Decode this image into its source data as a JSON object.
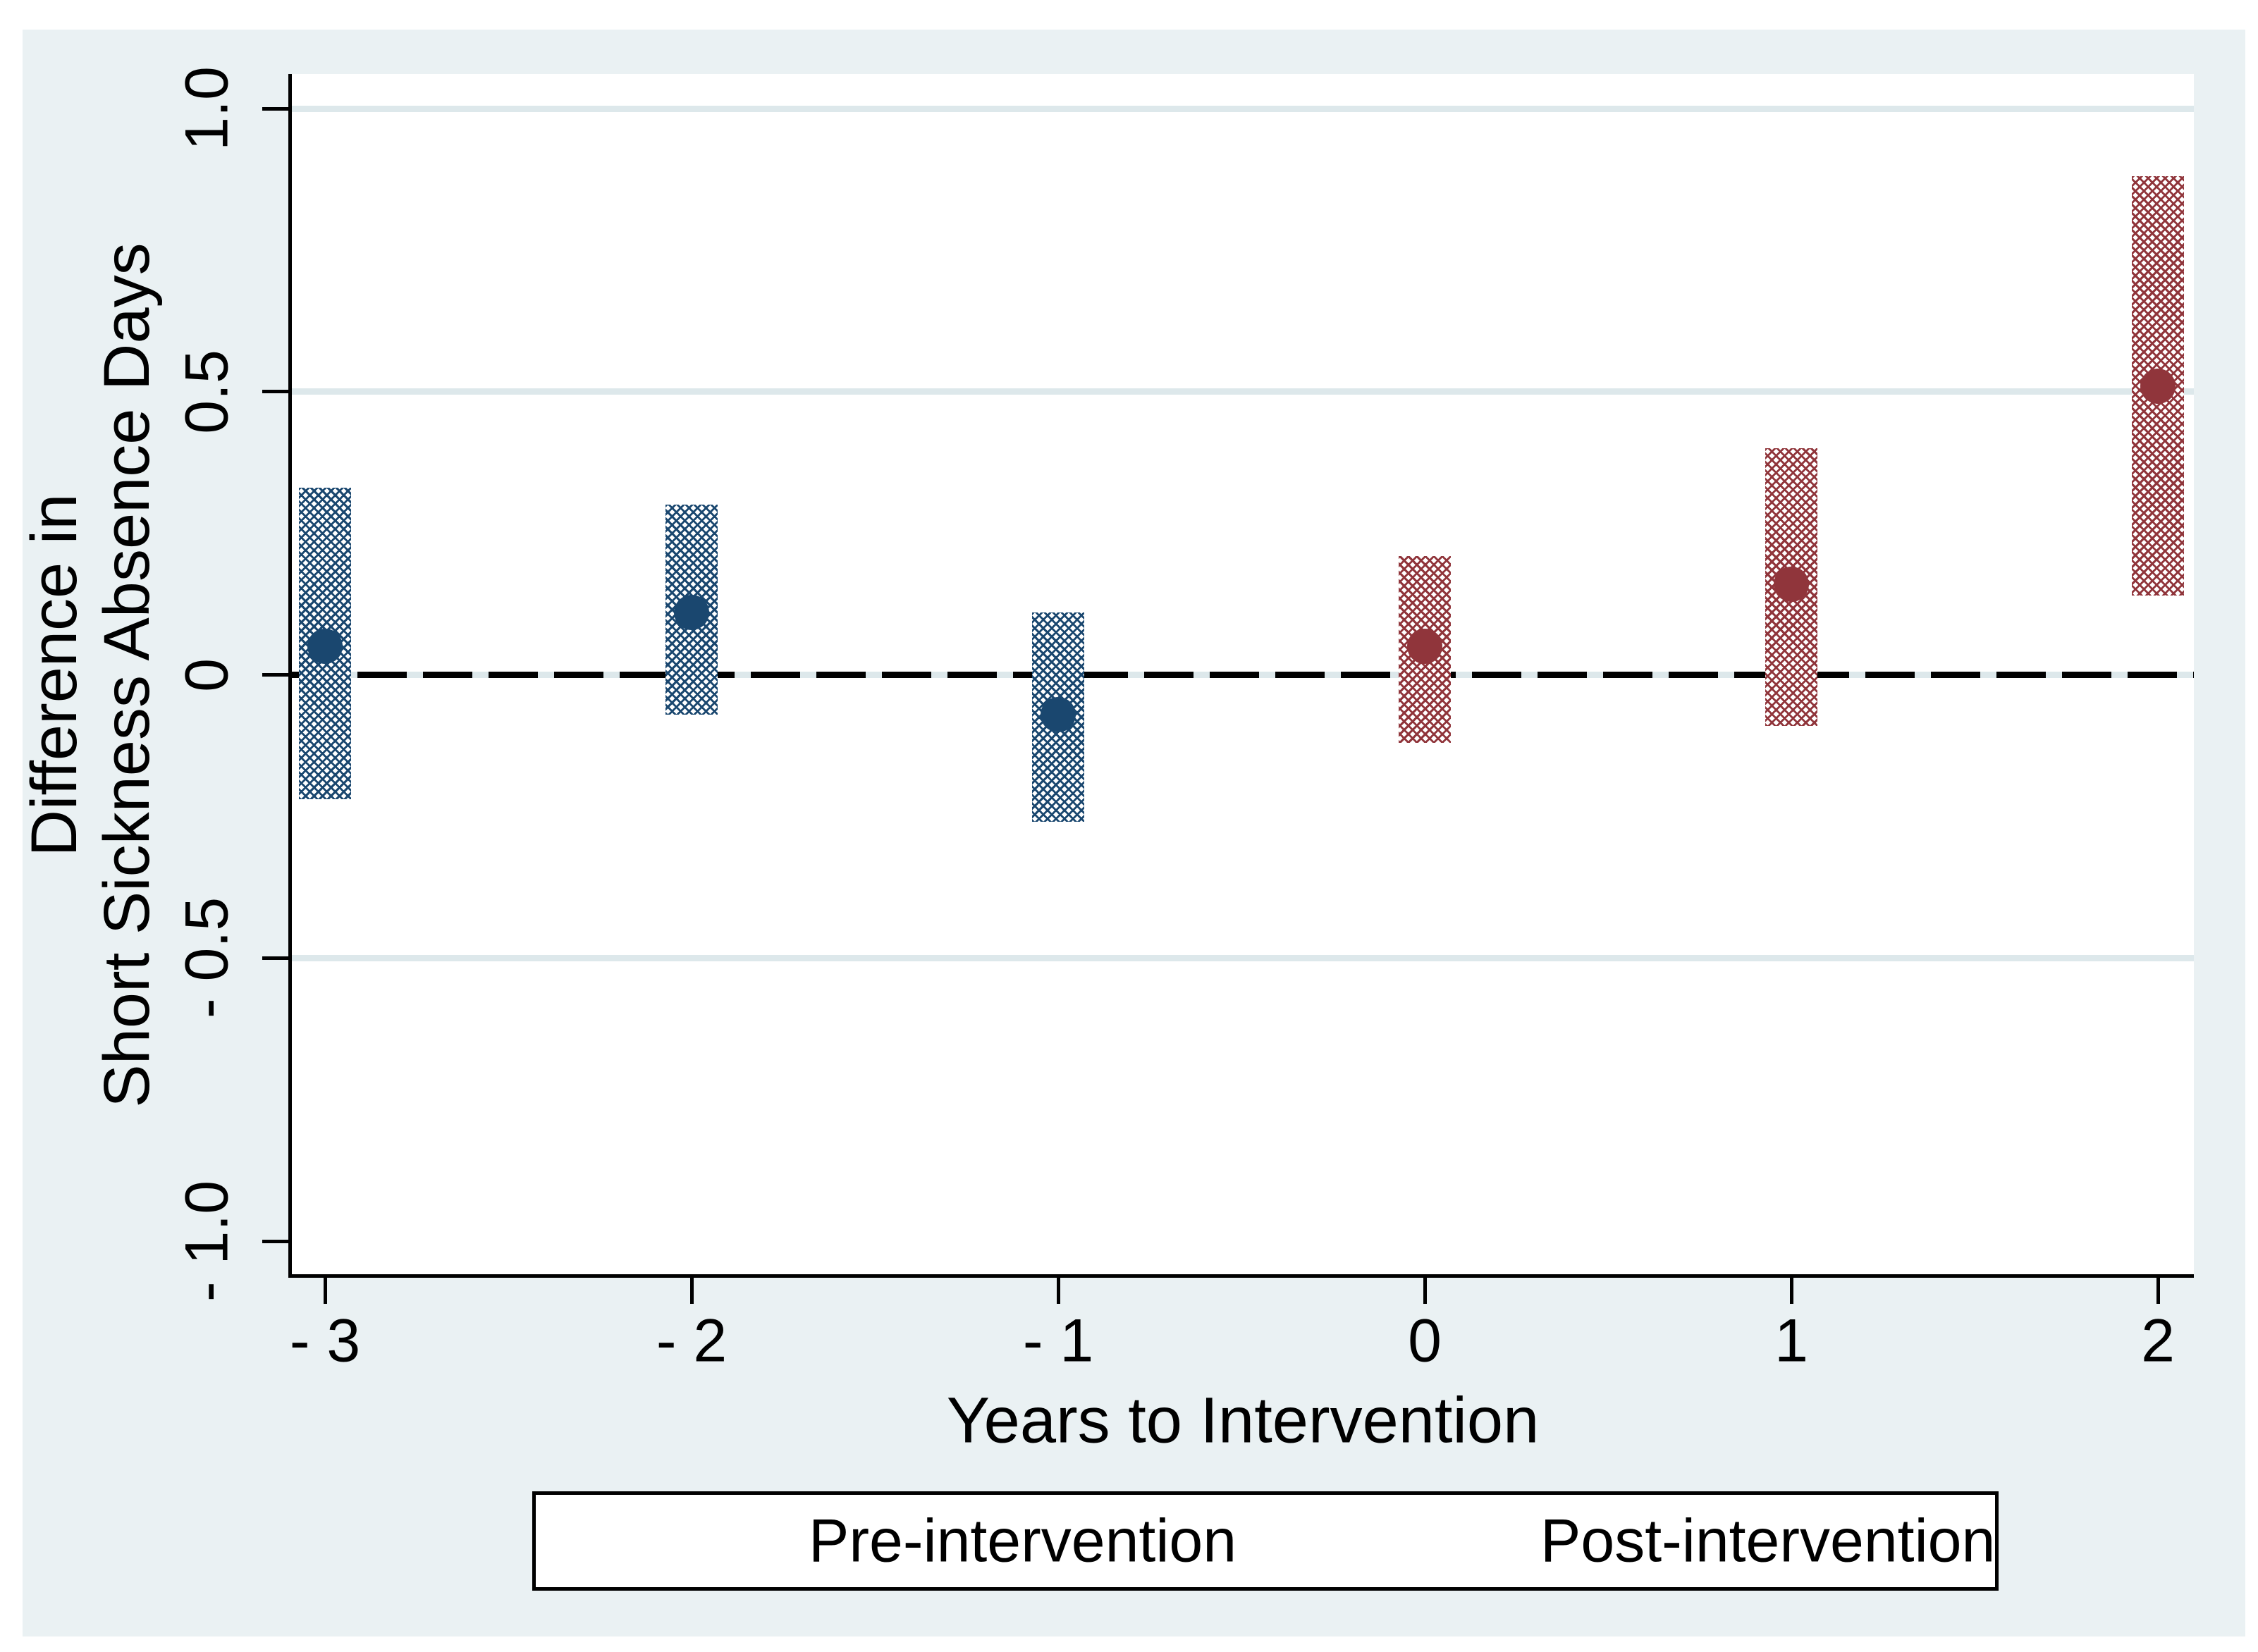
{
  "chart_data": {
    "type": "scatter",
    "title": "",
    "xlabel": "Years to Intervention",
    "ylabel": "Difference in\nShort Sickness Absence Days",
    "xlim": [
      -3.09,
      2.1
    ],
    "ylim": [
      -1.06,
      1.06
    ],
    "grid": "on",
    "x_ticks": [
      {
        "value": -3,
        "label": "- 3"
      },
      {
        "value": -2,
        "label": "- 2"
      },
      {
        "value": -1,
        "label": "- 1"
      },
      {
        "value": 0,
        "label": "0"
      },
      {
        "value": 1,
        "label": "1"
      },
      {
        "value": 2,
        "label": "2"
      }
    ],
    "y_ticks": [
      {
        "value": 1.0,
        "label": "1.0",
        "gridline": true
      },
      {
        "value": 0.5,
        "label": "0.5",
        "gridline": true
      },
      {
        "value": 0.0,
        "label": "0",
        "gridline": true
      },
      {
        "value": -0.5,
        "label": "- 0.5",
        "gridline": true
      },
      {
        "value": -1.0,
        "label": "- 1.0",
        "gridline": false
      }
    ],
    "reference_line_y": 0,
    "series": [
      {
        "name": "Pre-intervention",
        "color": "#1a476f",
        "marker": "circle",
        "ci_style": "hatched-bar",
        "points": [
          {
            "x": -3,
            "y": 0.05,
            "ci_low": -0.22,
            "ci_high": 0.33
          },
          {
            "x": -2,
            "y": 0.11,
            "ci_low": -0.07,
            "ci_high": 0.3
          },
          {
            "x": -1,
            "y": -0.07,
            "ci_low": -0.26,
            "ci_high": 0.11
          }
        ]
      },
      {
        "name": "Post-intervention",
        "color": "#90353b",
        "marker": "circle",
        "ci_style": "hatched-bar",
        "points": [
          {
            "x": 0,
            "y": 0.05,
            "ci_low": -0.12,
            "ci_high": 0.21
          },
          {
            "x": 1,
            "y": 0.16,
            "ci_low": -0.09,
            "ci_high": 0.4
          },
          {
            "x": 2,
            "y": 0.51,
            "ci_low": 0.14,
            "ci_high": 0.88
          }
        ]
      }
    ],
    "legend": {
      "position": "bottom-center",
      "items": [
        {
          "label": "Pre-intervention",
          "color": "#1a476f"
        },
        {
          "label": "Post-intervention",
          "color": "#90353b"
        }
      ]
    },
    "colors": {
      "pre": "#1a476f",
      "post": "#90353b",
      "background": "#eaf1f3",
      "plot_background": "#ffffff",
      "gridline": "#dde8eb",
      "reference_line": "#000000",
      "axis": "#000000"
    }
  }
}
